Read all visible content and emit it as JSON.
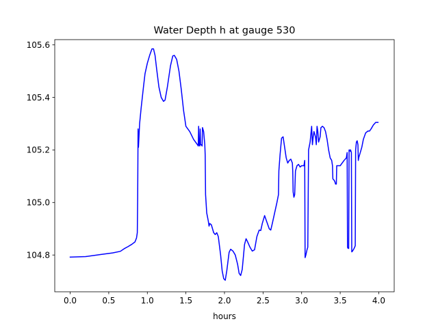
{
  "chart_data": {
    "type": "line",
    "title": "Water Depth h at gauge 530",
    "xlabel": "hours",
    "ylabel": "",
    "xlim": [
      -0.2,
      4.2
    ],
    "ylim": [
      104.66,
      105.62
    ],
    "x_ticks": [
      {
        "value": 0.0,
        "label": "0.0"
      },
      {
        "value": 0.5,
        "label": "0.5"
      },
      {
        "value": 1.0,
        "label": "1.0"
      },
      {
        "value": 1.5,
        "label": "1.5"
      },
      {
        "value": 2.0,
        "label": "2.0"
      },
      {
        "value": 2.5,
        "label": "2.5"
      },
      {
        "value": 3.0,
        "label": "3.0"
      },
      {
        "value": 3.5,
        "label": "3.5"
      },
      {
        "value": 4.0,
        "label": "4.0"
      }
    ],
    "y_ticks": [
      {
        "value": 104.8,
        "label": "104.8"
      },
      {
        "value": 105.0,
        "label": "105.0"
      },
      {
        "value": 105.2,
        "label": "105.2"
      },
      {
        "value": 105.4,
        "label": "105.4"
      },
      {
        "value": 105.6,
        "label": "105.6"
      }
    ],
    "grid": false,
    "legend": "none",
    "series": [
      {
        "color": "#0000ff",
        "points": [
          [
            0.0,
            104.792
          ],
          [
            0.2,
            104.794
          ],
          [
            0.4,
            104.802
          ],
          [
            0.55,
            104.808
          ],
          [
            0.65,
            104.814
          ],
          [
            0.7,
            104.824
          ],
          [
            0.75,
            104.832
          ],
          [
            0.8,
            104.841
          ],
          [
            0.84,
            104.85
          ],
          [
            0.86,
            104.865
          ],
          [
            0.87,
            104.885
          ],
          [
            0.875,
            105.02
          ],
          [
            0.88,
            105.28
          ],
          [
            0.885,
            105.21
          ],
          [
            0.9,
            105.3
          ],
          [
            0.92,
            105.36
          ],
          [
            0.95,
            105.44
          ],
          [
            0.97,
            105.49
          ],
          [
            1.0,
            105.53
          ],
          [
            1.03,
            105.56
          ],
          [
            1.06,
            105.585
          ],
          [
            1.08,
            105.585
          ],
          [
            1.1,
            105.56
          ],
          [
            1.12,
            105.51
          ],
          [
            1.15,
            105.44
          ],
          [
            1.18,
            105.4
          ],
          [
            1.21,
            105.385
          ],
          [
            1.23,
            105.39
          ],
          [
            1.26,
            105.44
          ],
          [
            1.3,
            105.52
          ],
          [
            1.33,
            105.558
          ],
          [
            1.35,
            105.56
          ],
          [
            1.38,
            105.545
          ],
          [
            1.41,
            105.5
          ],
          [
            1.44,
            105.43
          ],
          [
            1.47,
            105.35
          ],
          [
            1.5,
            105.29
          ],
          [
            1.55,
            105.27
          ],
          [
            1.6,
            105.24
          ],
          [
            1.65,
            105.22
          ],
          [
            1.66,
            105.215
          ],
          [
            1.665,
            105.29
          ],
          [
            1.67,
            105.22
          ],
          [
            1.68,
            105.215
          ],
          [
            1.685,
            105.28
          ],
          [
            1.69,
            105.22
          ],
          [
            1.7,
            105.22
          ],
          [
            1.71,
            105.215
          ],
          [
            1.715,
            105.285
          ],
          [
            1.73,
            105.27
          ],
          [
            1.745,
            105.22
          ],
          [
            1.75,
            105.18
          ],
          [
            1.755,
            105.03
          ],
          [
            1.77,
            104.96
          ],
          [
            1.79,
            104.93
          ],
          [
            1.8,
            104.91
          ],
          [
            1.81,
            104.92
          ],
          [
            1.83,
            104.915
          ],
          [
            1.86,
            104.885
          ],
          [
            1.88,
            104.878
          ],
          [
            1.9,
            104.885
          ],
          [
            1.92,
            104.87
          ],
          [
            1.95,
            104.8
          ],
          [
            1.97,
            104.74
          ],
          [
            1.99,
            104.71
          ],
          [
            2.01,
            104.704
          ],
          [
            2.03,
            104.74
          ],
          [
            2.06,
            104.81
          ],
          [
            2.08,
            104.822
          ],
          [
            2.11,
            104.815
          ],
          [
            2.14,
            104.8
          ],
          [
            2.17,
            104.765
          ],
          [
            2.19,
            104.73
          ],
          [
            2.21,
            104.722
          ],
          [
            2.23,
            104.745
          ],
          [
            2.26,
            104.84
          ],
          [
            2.28,
            104.862
          ],
          [
            2.3,
            104.85
          ],
          [
            2.33,
            104.83
          ],
          [
            2.36,
            104.815
          ],
          [
            2.39,
            104.82
          ],
          [
            2.42,
            104.87
          ],
          [
            2.45,
            104.895
          ],
          [
            2.47,
            104.893
          ],
          [
            2.49,
            104.92
          ],
          [
            2.52,
            104.95
          ],
          [
            2.55,
            104.925
          ],
          [
            2.58,
            104.9
          ],
          [
            2.6,
            104.895
          ],
          [
            2.62,
            104.92
          ],
          [
            2.65,
            104.96
          ],
          [
            2.68,
            105.0
          ],
          [
            2.7,
            105.03
          ],
          [
            2.705,
            105.12
          ],
          [
            2.72,
            105.18
          ],
          [
            2.74,
            105.245
          ],
          [
            2.76,
            105.25
          ],
          [
            2.78,
            105.21
          ],
          [
            2.8,
            105.17
          ],
          [
            2.82,
            105.15
          ],
          [
            2.84,
            105.16
          ],
          [
            2.86,
            105.165
          ],
          [
            2.88,
            105.15
          ],
          [
            2.885,
            105.12
          ],
          [
            2.89,
            105.04
          ],
          [
            2.9,
            105.02
          ],
          [
            2.91,
            105.03
          ],
          [
            2.92,
            105.12
          ],
          [
            2.94,
            105.14
          ],
          [
            2.96,
            105.145
          ],
          [
            2.98,
            105.135
          ],
          [
            3.0,
            105.14
          ],
          [
            3.03,
            105.14
          ],
          [
            3.04,
            105.16
          ],
          [
            3.045,
            104.79
          ],
          [
            3.055,
            104.8
          ],
          [
            3.07,
            104.82
          ],
          [
            3.08,
            104.83
          ],
          [
            3.09,
            105.2
          ],
          [
            3.11,
            105.23
          ],
          [
            3.12,
            105.26
          ],
          [
            3.13,
            105.29
          ],
          [
            3.14,
            105.22
          ],
          [
            3.15,
            105.25
          ],
          [
            3.16,
            105.27
          ],
          [
            3.18,
            105.25
          ],
          [
            3.19,
            105.22
          ],
          [
            3.2,
            105.29
          ],
          [
            3.21,
            105.27
          ],
          [
            3.22,
            105.23
          ],
          [
            3.24,
            105.25
          ],
          [
            3.25,
            105.285
          ],
          [
            3.27,
            105.29
          ],
          [
            3.29,
            105.285
          ],
          [
            3.31,
            105.27
          ],
          [
            3.33,
            105.24
          ],
          [
            3.35,
            105.2
          ],
          [
            3.37,
            105.17
          ],
          [
            3.39,
            105.16
          ],
          [
            3.4,
            105.14
          ],
          [
            3.405,
            105.09
          ],
          [
            3.42,
            105.085
          ],
          [
            3.43,
            105.08
          ],
          [
            3.44,
            105.07
          ],
          [
            3.45,
            105.07
          ],
          [
            3.455,
            105.14
          ],
          [
            3.47,
            105.14
          ],
          [
            3.5,
            105.14
          ],
          [
            3.55,
            105.16
          ],
          [
            3.58,
            105.17
          ],
          [
            3.59,
            105.19
          ],
          [
            3.595,
            104.83
          ],
          [
            3.6,
            104.826
          ],
          [
            3.61,
            104.825
          ],
          [
            3.615,
            105.2
          ],
          [
            3.625,
            105.2
          ],
          [
            3.63,
            105.195
          ],
          [
            3.635,
            105.2
          ],
          [
            3.645,
            105.19
          ],
          [
            3.65,
            104.812
          ],
          [
            3.66,
            104.815
          ],
          [
            3.68,
            104.825
          ],
          [
            3.695,
            104.835
          ],
          [
            3.7,
            105.2
          ],
          [
            3.71,
            105.23
          ],
          [
            3.72,
            105.235
          ],
          [
            3.73,
            105.22
          ],
          [
            3.735,
            105.16
          ],
          [
            3.74,
            105.17
          ],
          [
            3.76,
            105.19
          ],
          [
            3.78,
            105.21
          ],
          [
            3.8,
            105.24
          ],
          [
            3.83,
            105.265
          ],
          [
            3.86,
            105.272
          ],
          [
            3.88,
            105.272
          ],
          [
            3.9,
            105.28
          ],
          [
            3.93,
            105.295
          ],
          [
            3.96,
            105.305
          ],
          [
            3.99,
            105.305
          ]
        ]
      }
    ]
  }
}
